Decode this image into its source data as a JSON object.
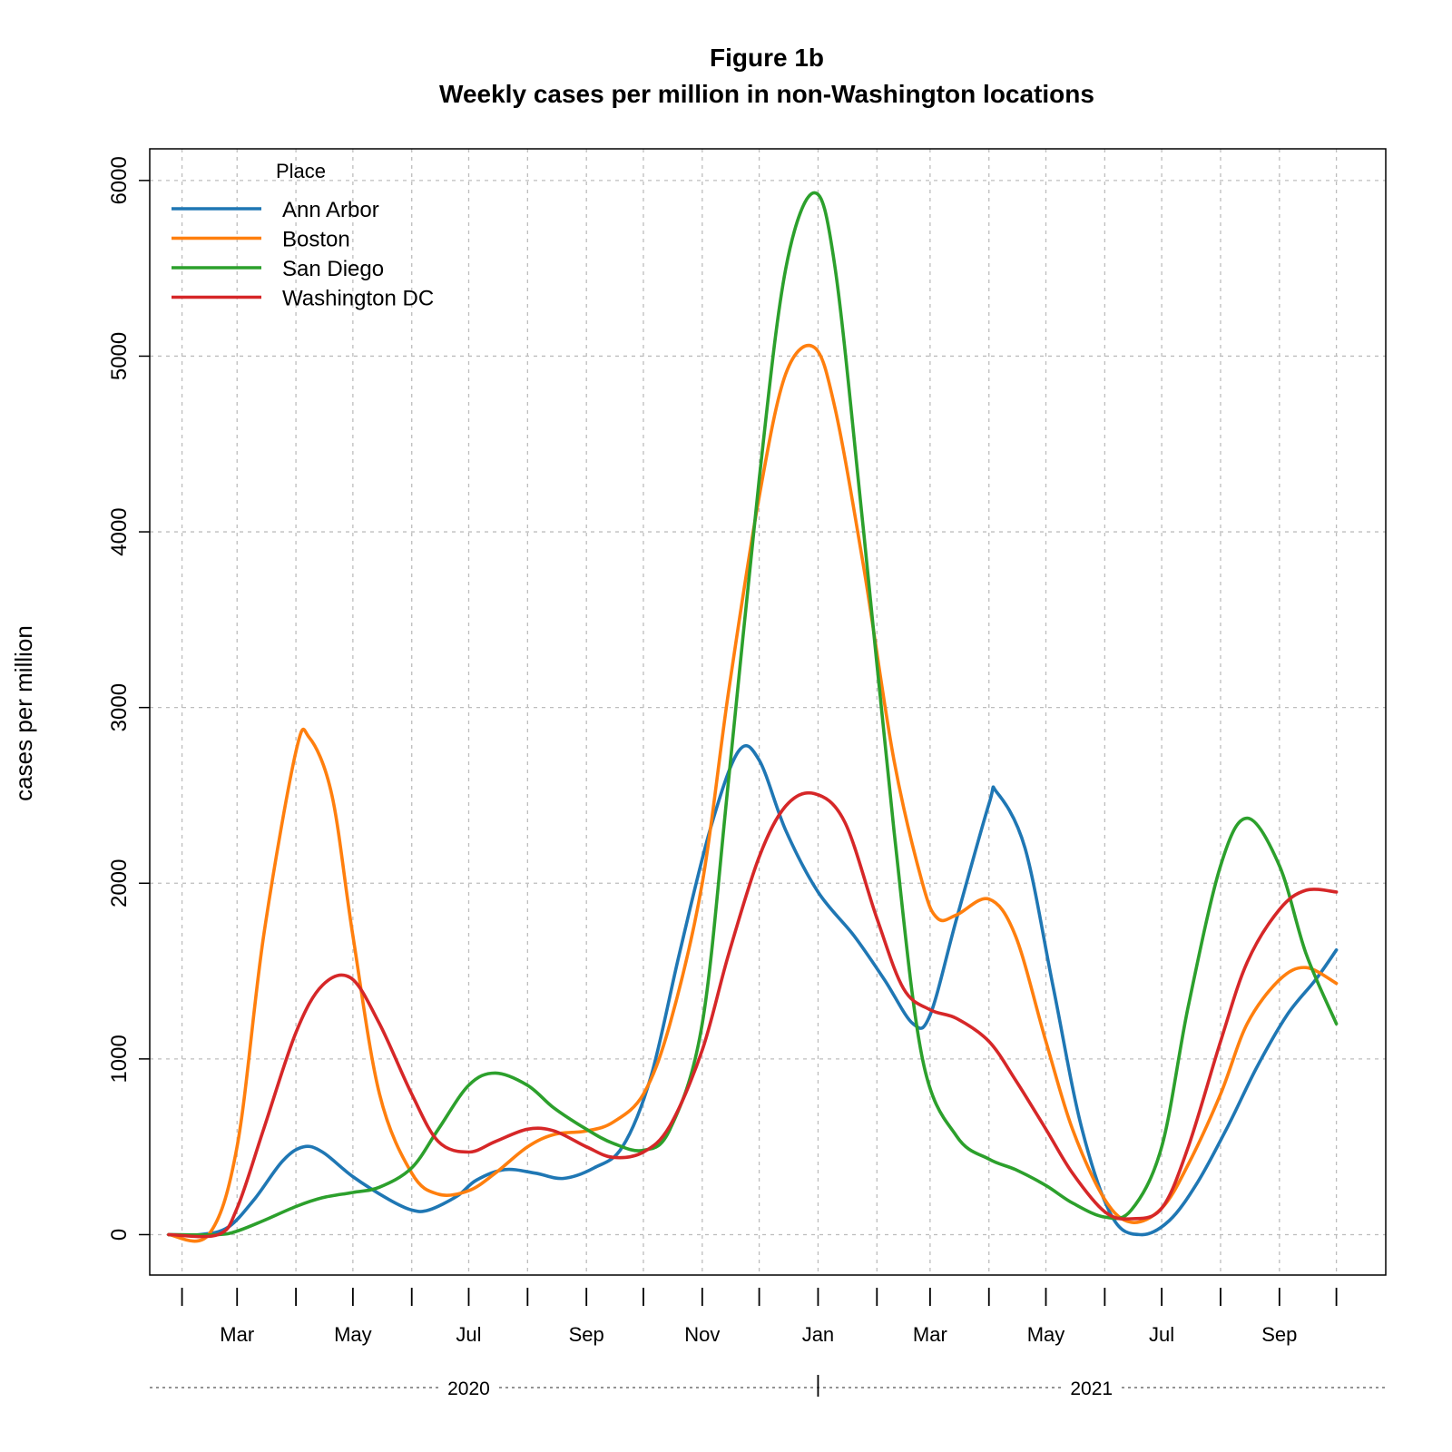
{
  "chart_data": {
    "type": "line",
    "title": "Figure 1b",
    "subtitle": "Weekly cases per million in non-Washington locations",
    "xlabel": "",
    "ylabel": "cases per million",
    "x_unit": "date",
    "xlim": [
      "2020-01-15",
      "2021-10-27"
    ],
    "ylim": [
      -230,
      6180
    ],
    "y_ticks": [
      0,
      1000,
      2000,
      3000,
      4000,
      5000,
      6000
    ],
    "x_tick_marks": [
      "2020-02-01",
      "2020-03-01",
      "2020-04-01",
      "2020-05-01",
      "2020-06-01",
      "2020-07-01",
      "2020-08-01",
      "2020-09-01",
      "2020-10-01",
      "2020-11-01",
      "2020-12-01",
      "2021-01-01",
      "2021-02-01",
      "2021-03-01",
      "2021-04-01",
      "2021-05-01",
      "2021-06-01",
      "2021-07-01",
      "2021-08-01",
      "2021-09-01",
      "2021-10-01"
    ],
    "x_tick_labels": [
      {
        "date": "2020-03-01",
        "label": "Mar"
      },
      {
        "date": "2020-05-01",
        "label": "May"
      },
      {
        "date": "2020-07-01",
        "label": "Jul"
      },
      {
        "date": "2020-09-01",
        "label": "Sep"
      },
      {
        "date": "2020-11-01",
        "label": "Nov"
      },
      {
        "date": "2021-01-01",
        "label": "Jan"
      },
      {
        "date": "2021-03-01",
        "label": "Mar"
      },
      {
        "date": "2021-05-01",
        "label": "May"
      },
      {
        "date": "2021-07-01",
        "label": "Jul"
      },
      {
        "date": "2021-09-01",
        "label": "Sep"
      }
    ],
    "year_labels": [
      {
        "label": "2020",
        "center": "2020-07-01"
      },
      {
        "label": "2021",
        "center": "2021-05-25"
      }
    ],
    "year_boundary": "2021-01-01",
    "grid": true,
    "legend": {
      "title": "Place",
      "position": "top-left"
    },
    "series": [
      {
        "name": "Ann Arbor",
        "color": "#1f77b4",
        "points": [
          [
            "2020-01-25",
            0
          ],
          [
            "2020-02-10",
            0
          ],
          [
            "2020-02-25",
            40
          ],
          [
            "2020-03-10",
            200
          ],
          [
            "2020-03-25",
            420
          ],
          [
            "2020-04-05",
            500
          ],
          [
            "2020-04-15",
            470
          ],
          [
            "2020-05-01",
            330
          ],
          [
            "2020-05-20",
            200
          ],
          [
            "2020-06-01",
            140
          ],
          [
            "2020-06-10",
            140
          ],
          [
            "2020-06-25",
            220
          ],
          [
            "2020-07-05",
            310
          ],
          [
            "2020-07-20",
            370
          ],
          [
            "2020-08-05",
            350
          ],
          [
            "2020-08-20",
            320
          ],
          [
            "2020-09-05",
            380
          ],
          [
            "2020-09-20",
            500
          ],
          [
            "2020-10-05",
            900
          ],
          [
            "2020-10-20",
            1600
          ],
          [
            "2020-11-05",
            2300
          ],
          [
            "2020-11-20",
            2750
          ],
          [
            "2020-12-01",
            2700
          ],
          [
            "2020-12-15",
            2300
          ],
          [
            "2021-01-01",
            1950
          ],
          [
            "2021-01-20",
            1700
          ],
          [
            "2021-02-05",
            1450
          ],
          [
            "2021-02-20",
            1200
          ],
          [
            "2021-03-01",
            1250
          ],
          [
            "2021-03-15",
            1800
          ],
          [
            "2021-04-01",
            2450
          ],
          [
            "2021-04-05",
            2520
          ],
          [
            "2021-04-20",
            2200
          ],
          [
            "2021-05-05",
            1400
          ],
          [
            "2021-05-20",
            600
          ],
          [
            "2021-06-05",
            100
          ],
          [
            "2021-06-20",
            0
          ],
          [
            "2021-07-05",
            80
          ],
          [
            "2021-07-20",
            300
          ],
          [
            "2021-08-05",
            620
          ],
          [
            "2021-08-20",
            950
          ],
          [
            "2021-09-05",
            1250
          ],
          [
            "2021-09-20",
            1450
          ],
          [
            "2021-10-01",
            1620
          ]
        ]
      },
      {
        "name": "Boston",
        "color": "#ff7f0e",
        "points": [
          [
            "2020-01-25",
            0
          ],
          [
            "2020-02-15",
            0
          ],
          [
            "2020-03-01",
            500
          ],
          [
            "2020-03-15",
            1700
          ],
          [
            "2020-04-01",
            2750
          ],
          [
            "2020-04-08",
            2830
          ],
          [
            "2020-04-20",
            2500
          ],
          [
            "2020-05-01",
            1700
          ],
          [
            "2020-05-15",
            800
          ],
          [
            "2020-06-01",
            350
          ],
          [
            "2020-06-15",
            230
          ],
          [
            "2020-07-01",
            250
          ],
          [
            "2020-07-15",
            350
          ],
          [
            "2020-08-01",
            500
          ],
          [
            "2020-08-15",
            570
          ],
          [
            "2020-09-01",
            590
          ],
          [
            "2020-09-15",
            640
          ],
          [
            "2020-10-01",
            800
          ],
          [
            "2020-10-15",
            1200
          ],
          [
            "2020-11-01",
            2000
          ],
          [
            "2020-11-15",
            3100
          ],
          [
            "2020-12-01",
            4200
          ],
          [
            "2020-12-15",
            4900
          ],
          [
            "2020-12-30",
            5050
          ],
          [
            "2021-01-10",
            4700
          ],
          [
            "2021-01-25",
            3800
          ],
          [
            "2021-02-10",
            2700
          ],
          [
            "2021-02-25",
            2000
          ],
          [
            "2021-03-05",
            1800
          ],
          [
            "2021-03-15",
            1820
          ],
          [
            "2021-04-01",
            1910
          ],
          [
            "2021-04-15",
            1700
          ],
          [
            "2021-05-01",
            1100
          ],
          [
            "2021-05-15",
            600
          ],
          [
            "2021-06-01",
            200
          ],
          [
            "2021-06-15",
            70
          ],
          [
            "2021-07-01",
            150
          ],
          [
            "2021-07-15",
            400
          ],
          [
            "2021-08-01",
            800
          ],
          [
            "2021-08-15",
            1200
          ],
          [
            "2021-09-01",
            1450
          ],
          [
            "2021-09-15",
            1520
          ],
          [
            "2021-10-01",
            1430
          ]
        ]
      },
      {
        "name": "San Diego",
        "color": "#2ca02c",
        "points": [
          [
            "2020-01-25",
            0
          ],
          [
            "2020-02-20",
            0
          ],
          [
            "2020-03-01",
            20
          ],
          [
            "2020-03-15",
            80
          ],
          [
            "2020-04-01",
            160
          ],
          [
            "2020-04-15",
            210
          ],
          [
            "2020-05-01",
            240
          ],
          [
            "2020-05-15",
            270
          ],
          [
            "2020-06-01",
            380
          ],
          [
            "2020-06-15",
            600
          ],
          [
            "2020-07-01",
            850
          ],
          [
            "2020-07-15",
            920
          ],
          [
            "2020-08-01",
            850
          ],
          [
            "2020-08-15",
            720
          ],
          [
            "2020-09-01",
            600
          ],
          [
            "2020-09-15",
            520
          ],
          [
            "2020-10-01",
            480
          ],
          [
            "2020-10-15",
            600
          ],
          [
            "2020-11-01",
            1200
          ],
          [
            "2020-11-15",
            2600
          ],
          [
            "2020-12-01",
            4300
          ],
          [
            "2020-12-15",
            5500
          ],
          [
            "2020-12-30",
            5930
          ],
          [
            "2021-01-10",
            5500
          ],
          [
            "2021-01-25",
            4000
          ],
          [
            "2021-02-10",
            2300
          ],
          [
            "2021-02-25",
            1000
          ],
          [
            "2021-03-15",
            560
          ],
          [
            "2021-04-01",
            430
          ],
          [
            "2021-04-15",
            370
          ],
          [
            "2021-05-01",
            280
          ],
          [
            "2021-05-15",
            180
          ],
          [
            "2021-06-01",
            100
          ],
          [
            "2021-06-15",
            140
          ],
          [
            "2021-07-01",
            500
          ],
          [
            "2021-07-15",
            1300
          ],
          [
            "2021-08-01",
            2100
          ],
          [
            "2021-08-15",
            2370
          ],
          [
            "2021-09-01",
            2100
          ],
          [
            "2021-09-15",
            1600
          ],
          [
            "2021-10-01",
            1200
          ]
        ]
      },
      {
        "name": "Washington DC",
        "color": "#d62728",
        "points": [
          [
            "2020-01-25",
            0
          ],
          [
            "2020-02-20",
            0
          ],
          [
            "2020-03-01",
            150
          ],
          [
            "2020-03-15",
            600
          ],
          [
            "2020-04-01",
            1150
          ],
          [
            "2020-04-15",
            1420
          ],
          [
            "2020-04-30",
            1460
          ],
          [
            "2020-05-15",
            1200
          ],
          [
            "2020-06-01",
            800
          ],
          [
            "2020-06-15",
            530
          ],
          [
            "2020-07-01",
            470
          ],
          [
            "2020-07-15",
            530
          ],
          [
            "2020-08-01",
            600
          ],
          [
            "2020-08-15",
            590
          ],
          [
            "2020-09-01",
            500
          ],
          [
            "2020-09-15",
            440
          ],
          [
            "2020-10-01",
            470
          ],
          [
            "2020-10-15",
            620
          ],
          [
            "2020-11-01",
            1050
          ],
          [
            "2020-11-15",
            1600
          ],
          [
            "2020-12-01",
            2150
          ],
          [
            "2020-12-15",
            2440
          ],
          [
            "2020-12-30",
            2510
          ],
          [
            "2021-01-15",
            2350
          ],
          [
            "2021-02-01",
            1800
          ],
          [
            "2021-02-15",
            1400
          ],
          [
            "2021-03-01",
            1280
          ],
          [
            "2021-03-15",
            1230
          ],
          [
            "2021-04-01",
            1100
          ],
          [
            "2021-04-15",
            880
          ],
          [
            "2021-05-01",
            600
          ],
          [
            "2021-05-15",
            350
          ],
          [
            "2021-06-01",
            130
          ],
          [
            "2021-06-15",
            90
          ],
          [
            "2021-07-01",
            150
          ],
          [
            "2021-07-15",
            500
          ],
          [
            "2021-08-01",
            1100
          ],
          [
            "2021-08-15",
            1550
          ],
          [
            "2021-09-01",
            1850
          ],
          [
            "2021-09-15",
            1960
          ],
          [
            "2021-10-01",
            1950
          ]
        ]
      }
    ]
  }
}
